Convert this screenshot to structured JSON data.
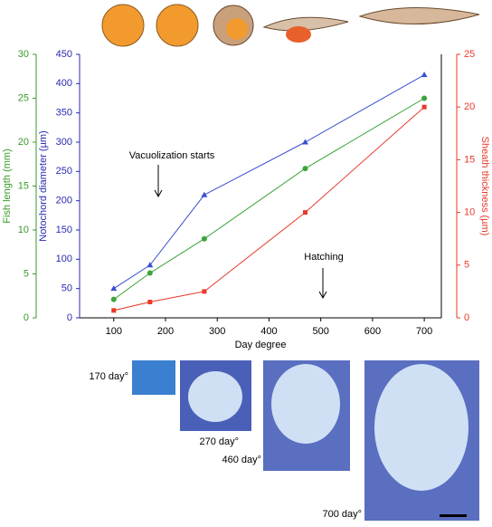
{
  "chart_data": {
    "type": "line",
    "xlabel": "Day degree",
    "x": [
      100,
      170,
      275,
      470,
      700
    ],
    "xlim": [
      34,
      733
    ],
    "xticks": [
      100,
      200,
      300,
      400,
      500,
      600,
      700
    ],
    "ylabel": "Notochord diameter (µm)",
    "ylim": [
      0,
      450
    ],
    "yticks": [
      0,
      50,
      100,
      150,
      200,
      250,
      300,
      350,
      400,
      450
    ],
    "ycolor": "#2a2ab0",
    "y2label": "Sheath thickness (µm)",
    "y2lim": [
      0,
      25
    ],
    "y2ticks": [
      0,
      5,
      10,
      15,
      20,
      25
    ],
    "y2color": "#e8392a",
    "y3label": "Fish length (mm)",
    "y3lim": [
      0,
      30
    ],
    "y3ticks": [
      0,
      5,
      10,
      15,
      20,
      25,
      30
    ],
    "y3color": "#3a9a2a",
    "series": [
      {
        "color": "#3a4fd0",
        "marker": "triangle",
        "axis": "y",
        "values": [
          50,
          90,
          210,
          300,
          415
        ]
      },
      {
        "color": "#3aa53a",
        "marker": "circle",
        "axis": "y3",
        "values": [
          2.1,
          5.1,
          9,
          17,
          25
        ]
      },
      {
        "color": "#e8392a",
        "marker": "square",
        "axis": "y2",
        "values": [
          0.7,
          1.5,
          2.5,
          10,
          20
        ]
      }
    ],
    "annotations": [
      "Vacuolization starts",
      "Hatching"
    ]
  },
  "images": [
    {
      "label": "170 day°"
    },
    {
      "label": "270 day°"
    },
    {
      "label": "460 day°"
    },
    {
      "label": "700 day°"
    }
  ]
}
